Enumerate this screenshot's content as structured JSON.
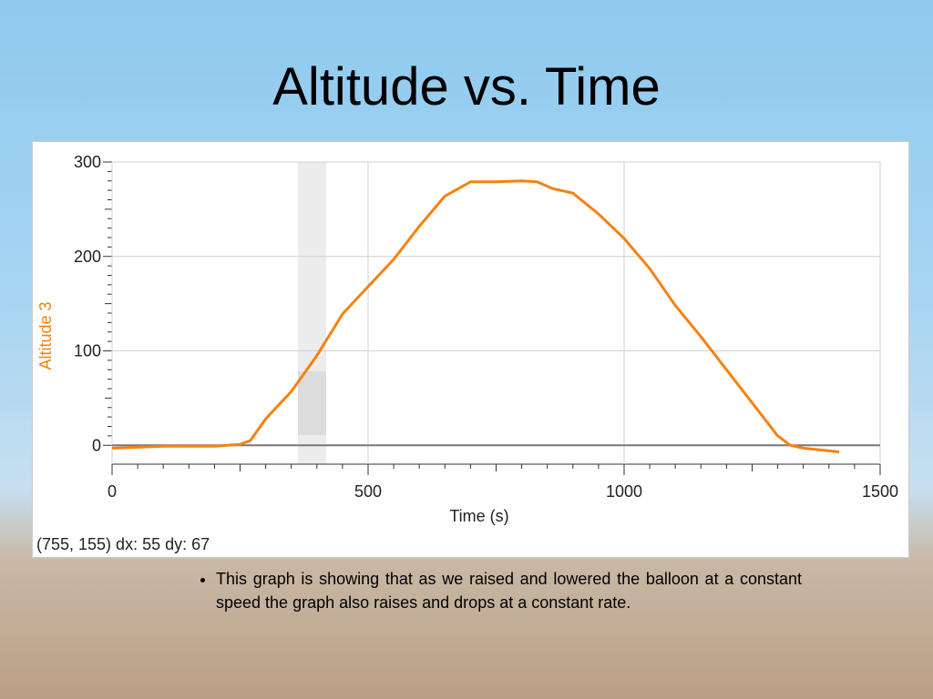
{
  "title": "Altitude vs. Time",
  "chart_data": {
    "type": "line",
    "x_label": "Time (s)",
    "y_label": "Altitude 3",
    "x": [
      0,
      100,
      200,
      250,
      270,
      300,
      350,
      400,
      450,
      500,
      550,
      600,
      650,
      700,
      750,
      800,
      830,
      860,
      900,
      950,
      1000,
      1050,
      1100,
      1150,
      1200,
      1250,
      1300,
      1325,
      1350,
      1420
    ],
    "values": [
      -3,
      -1,
      -1,
      1,
      5,
      28,
      57,
      95,
      139,
      168,
      197,
      232,
      264,
      279,
      279,
      280,
      279,
      272,
      267,
      245,
      219,
      187,
      148,
      115,
      80,
      45,
      10,
      0,
      -3,
      -7
    ],
    "color": "#f5820f",
    "xlim": [
      0,
      1500
    ],
    "xticks": [
      0,
      500,
      1000,
      1500
    ],
    "ylim": [
      -20,
      300
    ],
    "yticks": [
      0,
      100,
      200,
      300
    ],
    "grid": true
  },
  "readout": "(755, 155) dx: 55 dy: 67",
  "bullet": "This graph is showing that as we raised and lowered the balloon at a constant speed the graph also raises and drops at a constant rate."
}
